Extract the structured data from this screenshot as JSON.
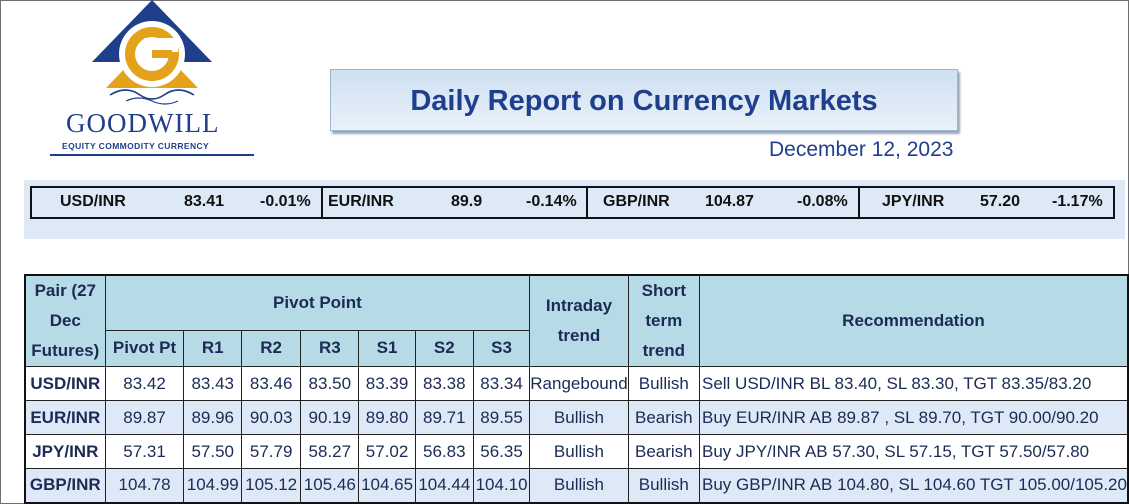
{
  "logo": {
    "wordmark": "GOODWILL",
    "tagline": "EQUITY COMMODITY CURRENCY",
    "colors": {
      "blue": "#1f3f8c",
      "gold": "#e3a21a"
    }
  },
  "report": {
    "title": "Daily Report on Currency Markets",
    "date": "December 12, 2023"
  },
  "ticker": [
    {
      "pair": "USD/INR",
      "price": "83.41",
      "change": "-0.01%"
    },
    {
      "pair": "EUR/INR",
      "price": "89.9",
      "change": "-0.14%"
    },
    {
      "pair": "GBP/INR",
      "price": "104.87",
      "change": "-0.08%"
    },
    {
      "pair": "JPY/INR",
      "price": "57.20",
      "change": "-1.17%"
    }
  ],
  "table": {
    "headers": {
      "pair": "Pair (27 Dec Futures)",
      "pivot_point": "Pivot Point",
      "intraday": "Intraday trend",
      "short_term": "Short term trend",
      "recommendation": "Recommendation",
      "levels": [
        "Pivot Pt",
        "R1",
        "R2",
        "R3",
        "S1",
        "S2",
        "S3"
      ]
    },
    "rows": [
      {
        "pair": "USD/INR",
        "values": [
          "83.42",
          "83.43",
          "83.46",
          "83.50",
          "83.39",
          "83.38",
          "83.34"
        ],
        "intraday": "Rangebound",
        "short_term": "Bullish",
        "recommendation": "Sell USD/INR BL 83.40, SL 83.30, TGT 83.35/83.20"
      },
      {
        "pair": "EUR/INR",
        "values": [
          "89.87",
          "89.96",
          "90.03",
          "90.19",
          "89.80",
          "89.71",
          "89.55"
        ],
        "intraday": "Bullish",
        "short_term": "Bearish",
        "recommendation": "Buy EUR/INR AB 89.87 , SL 89.70, TGT 90.00/90.20"
      },
      {
        "pair": "JPY/INR",
        "values": [
          "57.31",
          "57.50",
          "57.79",
          "58.27",
          "57.02",
          "56.83",
          "56.35"
        ],
        "intraday": "Bullish",
        "short_term": "Bearish",
        "recommendation": "Buy JPY/INR AB 57.30, SL 57.15, TGT 57.50/57.80"
      },
      {
        "pair": "GBP/INR",
        "values": [
          "104.78",
          "104.99",
          "105.12",
          "105.46",
          "104.65",
          "104.44",
          "104.10"
        ],
        "intraday": "Bullish",
        "short_term": "Bullish",
        "recommendation": "Buy GBP/INR AB 104.80, SL 104.60 TGT 105.00/105.20"
      }
    ]
  },
  "colors": {
    "header_fill": "#b7dbe6",
    "band_fill": "#dde9f6",
    "title_text": "#1f3f8c"
  }
}
